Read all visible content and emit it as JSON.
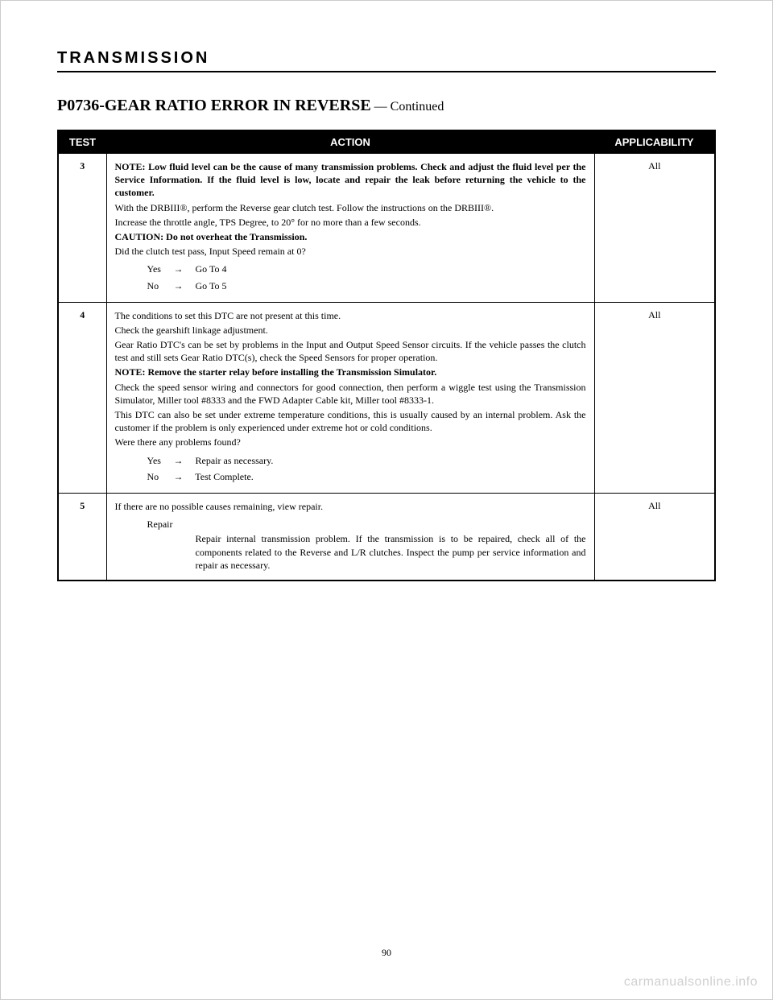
{
  "section_header": "TRANSMISSION",
  "title_main": "P0736-GEAR RATIO ERROR IN REVERSE",
  "title_continued": " — Continued",
  "table": {
    "headers": {
      "test": "TEST",
      "action": "ACTION",
      "applicability": "APPLICABILITY"
    },
    "rows": [
      {
        "test": "3",
        "applicability": "All",
        "paras": [
          {
            "bold": true,
            "text": "NOTE: Low fluid level can be the cause of many transmission problems. Check and adjust the fluid level per the Service Information. If the fluid level is low, locate and repair the leak before returning the vehicle to the customer."
          },
          {
            "bold": false,
            "text": "With the DRBIII®, perform the Reverse gear clutch test. Follow the instructions on the DRBIII®."
          },
          {
            "bold": false,
            "text": "Increase the throttle angle, TPS Degree, to 20° for no more than a few seconds."
          },
          {
            "bold": true,
            "text": "CAUTION: Do not overheat the Transmission."
          },
          {
            "bold": false,
            "text": "Did the clutch test pass, Input Speed remain at 0?"
          }
        ],
        "yn": [
          {
            "label": "Yes",
            "action": "Go To   4"
          },
          {
            "label": "No",
            "action": "Go To   5"
          }
        ]
      },
      {
        "test": "4",
        "applicability": "All",
        "paras": [
          {
            "bold": false,
            "text": "The conditions to set this DTC are not present at this time."
          },
          {
            "bold": false,
            "text": "Check the gearshift linkage adjustment."
          },
          {
            "bold": false,
            "text": "Gear Ratio DTC's can be set by problems in the Input and Output Speed Sensor circuits. If the vehicle passes the clutch test and still sets Gear Ratio DTC(s), check the Speed Sensors for proper operation."
          },
          {
            "bold": true,
            "text": "NOTE: Remove the starter relay before installing the Transmission Simulator."
          },
          {
            "bold": false,
            "text": "Check the speed sensor wiring and connectors for good connection, then perform a wiggle test using the Transmission Simulator, Miller tool #8333 and the FWD Adapter Cable kit, Miller tool #8333-1."
          },
          {
            "bold": false,
            "text": "This DTC can also be set under extreme temperature conditions, this is usually caused by an internal problem. Ask the customer if the problem is only experienced under extreme hot or cold conditions."
          },
          {
            "bold": false,
            "text": "Were there any problems found?"
          }
        ],
        "yn": [
          {
            "label": "Yes",
            "action": "Repair as necessary."
          },
          {
            "label": "No",
            "action": "Test Complete."
          }
        ]
      },
      {
        "test": "5",
        "applicability": "All",
        "paras": [
          {
            "bold": false,
            "text": "If there are no possible causes remaining, view repair."
          }
        ],
        "repair": {
          "label": "Repair",
          "body": "Repair internal transmission problem. If the transmission is to be repaired, check all of the components related to the Reverse and L/R clutches. Inspect the pump per service information and repair as necessary."
        }
      }
    ]
  },
  "arrow_glyph": "→",
  "page_number": "90",
  "watermark": "carmanualsonline.info"
}
